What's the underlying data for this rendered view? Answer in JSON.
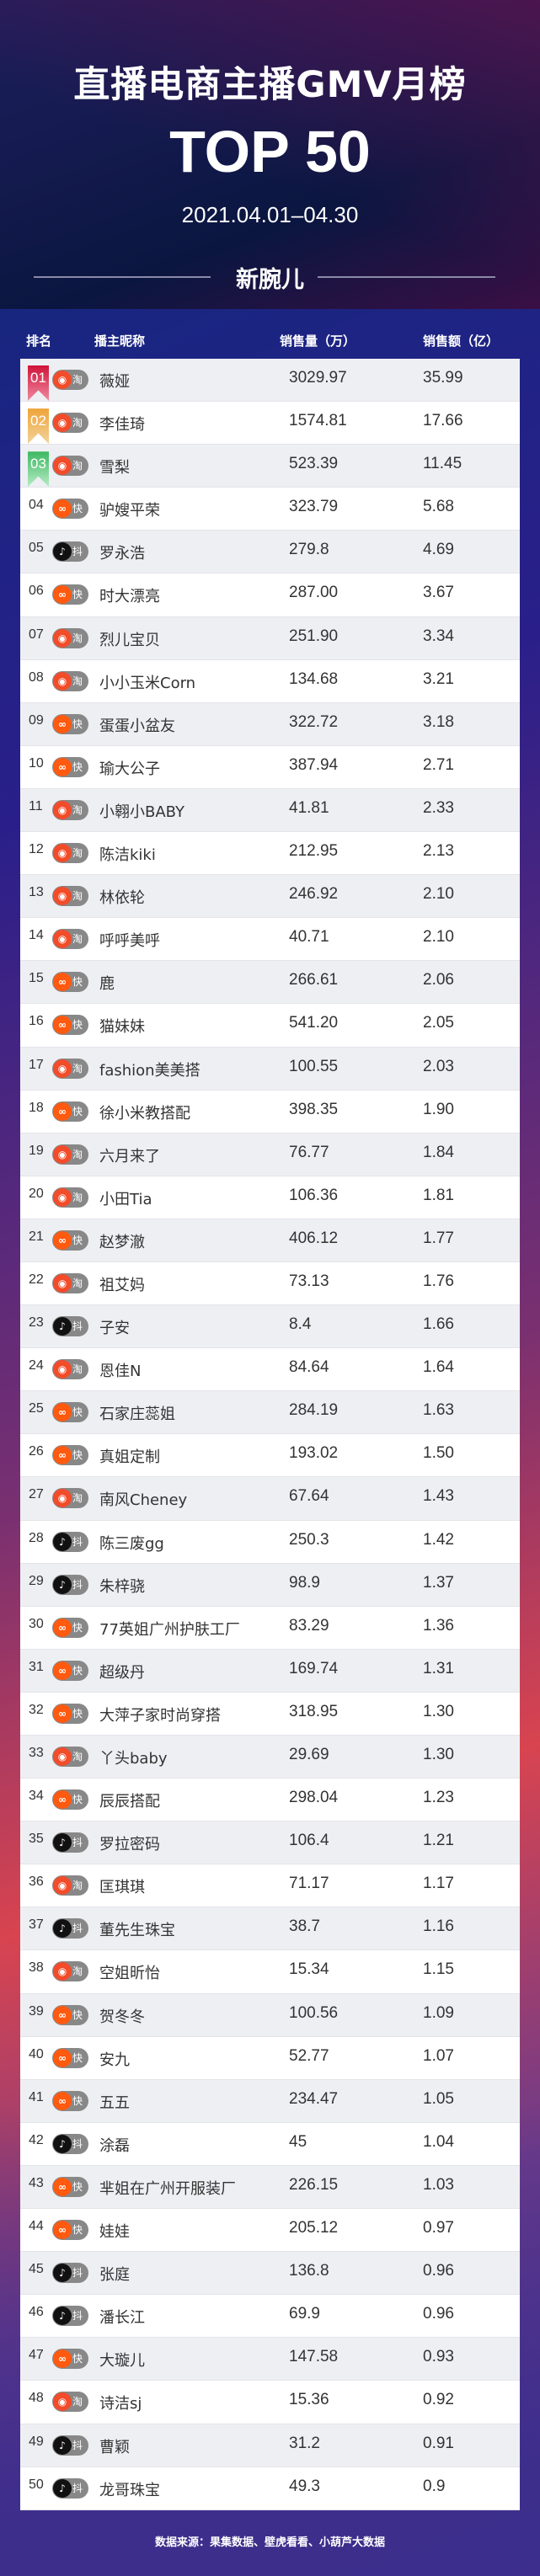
{
  "header": {
    "title": "直播电商主播GMV月榜",
    "subtitle": "TOP 50",
    "date_range": "2021.04.01–04.30",
    "brand": "新腕儿"
  },
  "columns": {
    "rank": "排名",
    "name": "播主昵称",
    "sales": "销售量（万）",
    "amount": "销售额（亿）"
  },
  "colors": {
    "taobao": "#f24c2a",
    "kuaishou": "#ff5a10",
    "douyin": "#111111",
    "rank1": "#d0133a",
    "rank2": "#eea43a",
    "rank3": "#3cb862",
    "badge_bg": "#888888"
  },
  "platforms": {
    "taobao": {
      "label": "淘",
      "icon": "taobao-live-icon"
    },
    "kuaishou": {
      "label": "快",
      "icon": "kuaishou-icon"
    },
    "douyin": {
      "label": "抖",
      "icon": "douyin-icon"
    }
  },
  "rows": [
    {
      "rank": "01",
      "platform": "taobao",
      "name": "薇娅",
      "sales": "3029.97",
      "amount": "35.99"
    },
    {
      "rank": "02",
      "platform": "taobao",
      "name": "李佳琦",
      "sales": "1574.81",
      "amount": "17.66"
    },
    {
      "rank": "03",
      "platform": "taobao",
      "name": "雪梨",
      "sales": "523.39",
      "amount": "11.45"
    },
    {
      "rank": "04",
      "platform": "kuaishou",
      "name": "驴嫂平荣",
      "sales": "323.79",
      "amount": "5.68"
    },
    {
      "rank": "05",
      "platform": "douyin",
      "name": "罗永浩",
      "sales": "279.8",
      "amount": "4.69"
    },
    {
      "rank": "06",
      "platform": "kuaishou",
      "name": "时大漂亮",
      "sales": "287.00",
      "amount": "3.67"
    },
    {
      "rank": "07",
      "platform": "taobao",
      "name": "烈儿宝贝",
      "sales": "251.90",
      "amount": "3.34"
    },
    {
      "rank": "08",
      "platform": "taobao",
      "name": "小小玉米Corn",
      "sales": "134.68",
      "amount": "3.21"
    },
    {
      "rank": "09",
      "platform": "kuaishou",
      "name": "蛋蛋小盆友",
      "sales": "322.72",
      "amount": "3.18"
    },
    {
      "rank": "10",
      "platform": "kuaishou",
      "name": "瑜大公子",
      "sales": "387.94",
      "amount": "2.71"
    },
    {
      "rank": "11",
      "platform": "taobao",
      "name": "小翱小BABY",
      "sales": "41.81",
      "amount": "2.33"
    },
    {
      "rank": "12",
      "platform": "taobao",
      "name": "陈洁kiki",
      "sales": "212.95",
      "amount": "2.13"
    },
    {
      "rank": "13",
      "platform": "taobao",
      "name": "林依轮",
      "sales": "246.92",
      "amount": "2.10"
    },
    {
      "rank": "14",
      "platform": "taobao",
      "name": "呼呼美呼",
      "sales": "40.71",
      "amount": "2.10"
    },
    {
      "rank": "15",
      "platform": "kuaishou",
      "name": "鹿",
      "sales": "266.61",
      "amount": "2.06"
    },
    {
      "rank": "16",
      "platform": "kuaishou",
      "name": "猫妹妹",
      "sales": "541.20",
      "amount": "2.05"
    },
    {
      "rank": "17",
      "platform": "taobao",
      "name": "fashion美美搭",
      "sales": "100.55",
      "amount": "2.03"
    },
    {
      "rank": "18",
      "platform": "kuaishou",
      "name": "徐小米教搭配",
      "sales": "398.35",
      "amount": "1.90"
    },
    {
      "rank": "19",
      "platform": "taobao",
      "name": "六月来了",
      "sales": "76.77",
      "amount": "1.84"
    },
    {
      "rank": "20",
      "platform": "taobao",
      "name": "小田Tia",
      "sales": "106.36",
      "amount": "1.81"
    },
    {
      "rank": "21",
      "platform": "kuaishou",
      "name": "赵梦澈",
      "sales": "406.12",
      "amount": "1.77"
    },
    {
      "rank": "22",
      "platform": "taobao",
      "name": "祖艾妈",
      "sales": "73.13",
      "amount": "1.76"
    },
    {
      "rank": "23",
      "platform": "douyin",
      "name": "子安",
      "sales": "8.4",
      "amount": "1.66"
    },
    {
      "rank": "24",
      "platform": "taobao",
      "name": "恩佳N",
      "sales": "84.64",
      "amount": "1.64"
    },
    {
      "rank": "25",
      "platform": "kuaishou",
      "name": "石家庄蕊姐",
      "sales": "284.19",
      "amount": "1.63"
    },
    {
      "rank": "26",
      "platform": "kuaishou",
      "name": "真姐定制",
      "sales": "193.02",
      "amount": "1.50"
    },
    {
      "rank": "27",
      "platform": "taobao",
      "name": "南风Cheney",
      "sales": "67.64",
      "amount": "1.43"
    },
    {
      "rank": "28",
      "platform": "douyin",
      "name": "陈三废gg",
      "sales": "250.3",
      "amount": "1.42"
    },
    {
      "rank": "29",
      "platform": "douyin",
      "name": "朱梓骁",
      "sales": "98.9",
      "amount": "1.37"
    },
    {
      "rank": "30",
      "platform": "kuaishou",
      "name": "77英姐广州护肤工厂",
      "sales": "83.29",
      "amount": "1.36"
    },
    {
      "rank": "31",
      "platform": "kuaishou",
      "name": "超级丹",
      "sales": "169.74",
      "amount": "1.31"
    },
    {
      "rank": "32",
      "platform": "kuaishou",
      "name": "大萍子家时尚穿搭",
      "sales": "318.95",
      "amount": "1.30"
    },
    {
      "rank": "33",
      "platform": "taobao",
      "name": "丫头baby",
      "sales": "29.69",
      "amount": "1.30"
    },
    {
      "rank": "34",
      "platform": "kuaishou",
      "name": "辰辰搭配",
      "sales": "298.04",
      "amount": "1.23"
    },
    {
      "rank": "35",
      "platform": "douyin",
      "name": "罗拉密码",
      "sales": "106.4",
      "amount": "1.21"
    },
    {
      "rank": "36",
      "platform": "taobao",
      "name": "匡琪琪",
      "sales": "71.17",
      "amount": "1.17"
    },
    {
      "rank": "37",
      "platform": "douyin",
      "name": "董先生珠宝",
      "sales": "38.7",
      "amount": "1.16"
    },
    {
      "rank": "38",
      "platform": "taobao",
      "name": "空姐昕怡",
      "sales": "15.34",
      "amount": "1.15"
    },
    {
      "rank": "39",
      "platform": "kuaishou",
      "name": "贺冬冬",
      "sales": "100.56",
      "amount": "1.09"
    },
    {
      "rank": "40",
      "platform": "kuaishou",
      "name": "安九",
      "sales": "52.77",
      "amount": "1.07"
    },
    {
      "rank": "41",
      "platform": "kuaishou",
      "name": "五五",
      "sales": "234.47",
      "amount": "1.05"
    },
    {
      "rank": "42",
      "platform": "douyin",
      "name": "涂磊",
      "sales": "45",
      "amount": "1.04"
    },
    {
      "rank": "43",
      "platform": "kuaishou",
      "name": "芈姐在广州开服装厂",
      "sales": "226.15",
      "amount": "1.03"
    },
    {
      "rank": "44",
      "platform": "kuaishou",
      "name": "娃娃",
      "sales": "205.12",
      "amount": "0.97"
    },
    {
      "rank": "45",
      "platform": "douyin",
      "name": "张庭",
      "sales": "136.8",
      "amount": "0.96"
    },
    {
      "rank": "46",
      "platform": "douyin",
      "name": "潘长江",
      "sales": "69.9",
      "amount": "0.96"
    },
    {
      "rank": "47",
      "platform": "kuaishou",
      "name": "大璇儿",
      "sales": "147.58",
      "amount": "0.93"
    },
    {
      "rank": "48",
      "platform": "taobao",
      "name": "诗洁sj",
      "sales": "15.36",
      "amount": "0.92"
    },
    {
      "rank": "49",
      "platform": "douyin",
      "name": "曹颖",
      "sales": "31.2",
      "amount": "0.91"
    },
    {
      "rank": "50",
      "platform": "douyin",
      "name": "龙哥珠宝",
      "sales": "49.3",
      "amount": "0.9"
    }
  ],
  "footer": "数据来源：果集数据、壁虎看看、小葫芦大数据"
}
